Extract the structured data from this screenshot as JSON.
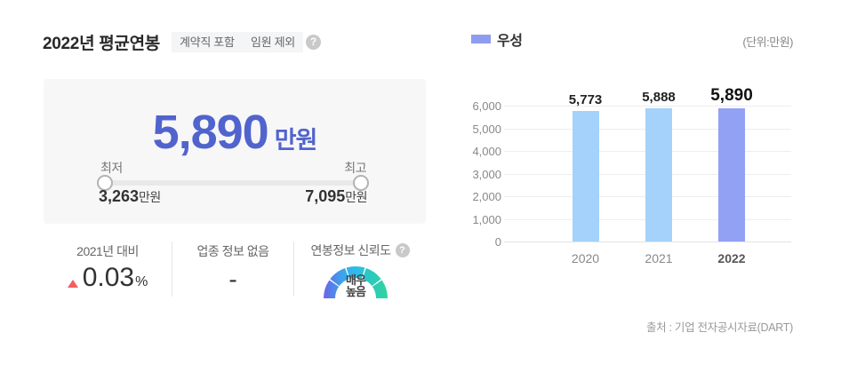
{
  "header": {
    "title": "2022년 평균연봉",
    "badges": [
      "계약직 포함",
      "임원 제외"
    ],
    "help_icon": "?"
  },
  "salary_card": {
    "amount": "5,890",
    "amount_unit": "만원",
    "min_label": "최저",
    "max_label": "최고",
    "min_value": "3,263",
    "min_unit": "만원",
    "max_value": "7,095",
    "max_unit": "만원"
  },
  "stats": {
    "yoy": {
      "label": "2021년 대비",
      "direction": "up",
      "value": "0.03",
      "unit": "%"
    },
    "industry": {
      "label": "업종 정보 없음",
      "value": "-"
    },
    "reliability": {
      "label": "연봉정보 신뢰도",
      "help_icon": "?",
      "level_line1": "매우",
      "level_line2": "높음",
      "level": "매우 높음"
    }
  },
  "chart": {
    "legend_label": "우성",
    "legend_color": "#8e9cf0",
    "unit_note": "(단위:만원)",
    "source": "출처 : 기업 전자공시자료(DART)"
  },
  "chart_data": {
    "type": "bar",
    "categories": [
      "2020",
      "2021",
      "2022"
    ],
    "values": [
      5773,
      5888,
      5890
    ],
    "value_labels": [
      "5,773",
      "5,888",
      "5,890"
    ],
    "series_name": "우성",
    "unit": "만원",
    "ylim": [
      0,
      6000
    ],
    "yticks": [
      0,
      1000,
      2000,
      3000,
      4000,
      5000,
      6000
    ],
    "ytick_labels": [
      "0",
      "1,000",
      "2,000",
      "3,000",
      "4,000",
      "5,000",
      "6,000"
    ],
    "bar_colors": [
      "#a4d2fa",
      "#a4d2fa",
      "#93a1f4"
    ],
    "highlight_index": 2,
    "grid": true,
    "legend_position": "top-left"
  },
  "colors": {
    "accent_blue": "#5164cd",
    "bar_light": "#a4d2fa",
    "bar_highlight": "#93a1f4",
    "up_red": "#f15f5f",
    "gauge_gradient": [
      "#6a65e8",
      "#3aa5ec",
      "#2cbcec",
      "#2bc8c2",
      "#30d49e"
    ]
  }
}
